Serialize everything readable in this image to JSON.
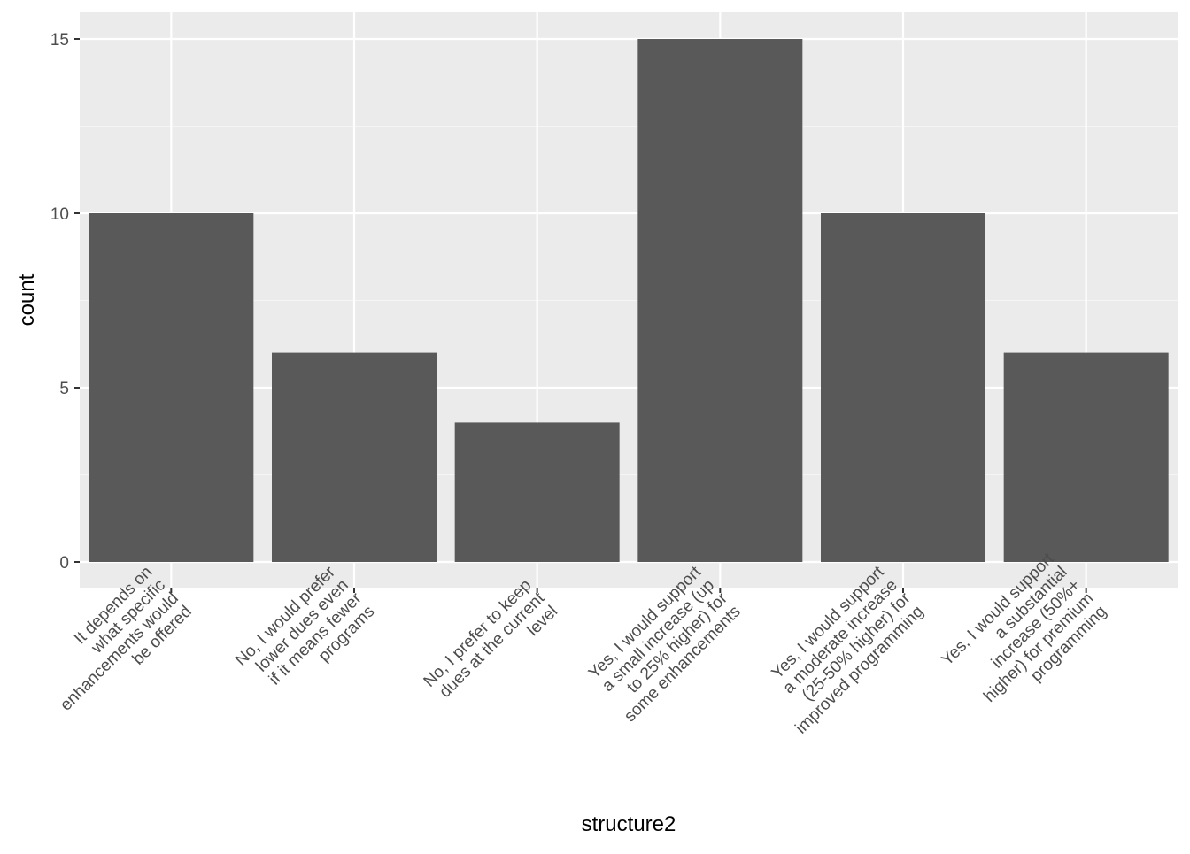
{
  "chart_data": {
    "type": "bar",
    "xlabel": "structure2",
    "ylabel": "count",
    "ylim": [
      0,
      15
    ],
    "y_ticks": [
      0,
      5,
      10,
      15
    ],
    "grid": true,
    "categories": [
      "It depends on what specific enhancements would be offered",
      "No, I would prefer lower dues even if it means fewer programs",
      "No, I prefer to keep dues at the current level",
      "Yes, I would support a small increase (up to 25% higher) for some enhancements",
      "Yes, I would support a moderate increase (25-50% higher) for improved programming",
      "Yes, I would support a substantial increase (50%+ higher) for premium programming"
    ],
    "category_label_lines": [
      [
        "It depends on",
        "what specific",
        "enhancements would",
        "be offered"
      ],
      [
        "No, I would prefer",
        "lower dues even",
        "if it means fewer",
        "programs"
      ],
      [
        "No, I prefer to keep",
        "dues at the current",
        "level"
      ],
      [
        "Yes, I would support",
        "a small increase (up",
        "to 25% higher) for",
        "some enhancements"
      ],
      [
        "Yes, I would support",
        "a moderate increase",
        "(25-50% higher) for",
        "improved programming"
      ],
      [
        "Yes, I would support",
        "a substantial",
        "increase (50%+",
        "higher) for premium",
        "programming"
      ]
    ],
    "values": [
      10,
      6,
      4,
      15,
      10,
      6
    ],
    "colors": {
      "bar": "#595959",
      "panel": "#ebebeb",
      "grid_major": "#ffffff",
      "grid_minor": "#f5f5f5",
      "tick_text": "#4d4d4d",
      "tick_mark": "#333333"
    }
  }
}
